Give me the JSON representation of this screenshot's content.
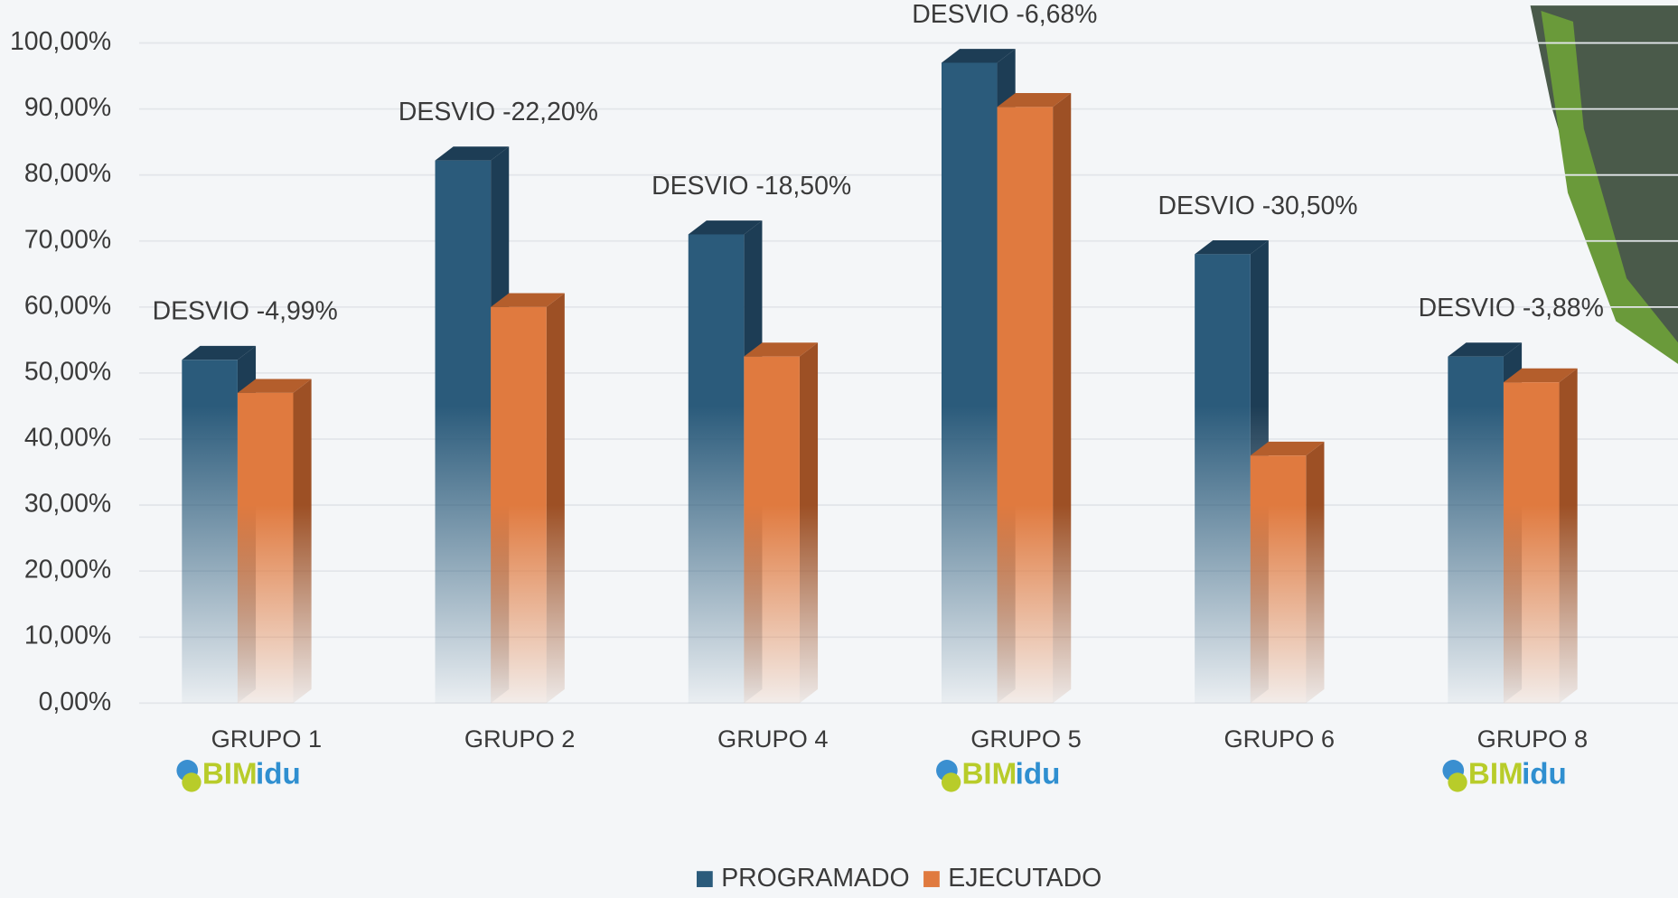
{
  "chart_data": {
    "type": "bar3d",
    "categories": [
      "GRUPO 1",
      "GRUPO 2",
      "GRUPO 4",
      "GRUPO 5",
      "GRUPO 6",
      "GRUPO 8"
    ],
    "series": [
      {
        "name": "PROGRAMADO",
        "color": "#2b5b7b",
        "values": [
          52,
          82.2,
          71,
          97,
          68,
          52.5
        ]
      },
      {
        "name": "EJECUTADO",
        "color": "#e07a3f",
        "values": [
          47,
          60,
          52.5,
          90.3,
          37.5,
          48.6
        ]
      }
    ],
    "annotations": [
      "DESVIO -4,99%",
      "DESVIO -22,20%",
      "DESVIO -18,50%",
      "DESVIO -6,68%",
      "DESVIO -30,50%",
      "DESVIO -3,88%"
    ],
    "ylim": [
      0,
      100
    ],
    "yticks": [
      {
        "value": 0,
        "label": "0,00%"
      },
      {
        "value": 10,
        "label": "10,00%"
      },
      {
        "value": 20,
        "label": "20,00%"
      },
      {
        "value": 30,
        "label": "30,00%"
      },
      {
        "value": 40,
        "label": "40,00%"
      },
      {
        "value": 50,
        "label": "50,00%"
      },
      {
        "value": 60,
        "label": "60,00%"
      },
      {
        "value": 70,
        "label": "70,00%"
      },
      {
        "value": 80,
        "label": "80,00%"
      },
      {
        "value": 90,
        "label": "90,00%"
      },
      {
        "value": 100,
        "label": "100,00%"
      }
    ],
    "grid": true,
    "logo": [
      "BIM",
      "idu"
    ]
  }
}
